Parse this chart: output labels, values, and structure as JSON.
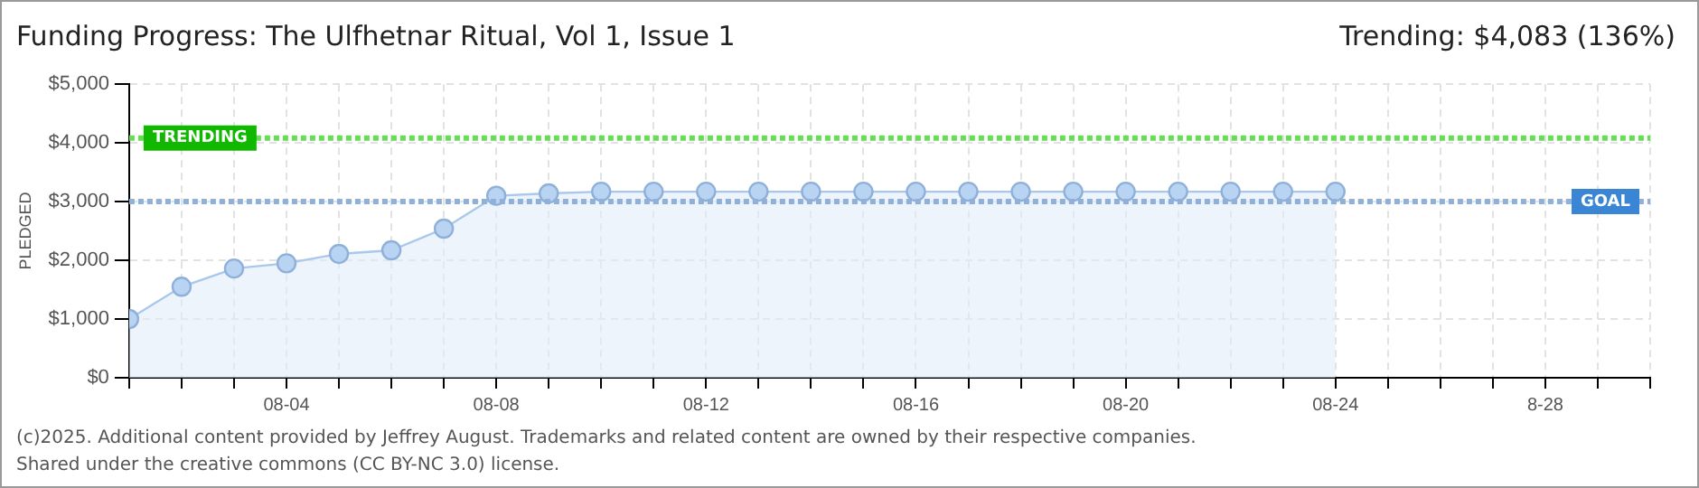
{
  "chart_data": {
    "type": "area",
    "title": "Funding Progress: The Ulfhetnar Ritual, Vol 1, Issue 1",
    "ylabel": "PLEDGED",
    "annotations": [
      "Trending: $4,083 (136%)",
      "(c)2025. Additional content provided by Jeffrey August. Trademarks and related content are owned by their respective companies.",
      "Shared under the creative commons (CC BY-NC 3.0) license."
    ],
    "x": [
      "--08-01",
      "--08-02",
      "--08-03",
      "--08-04",
      "--08-05",
      "--08-06",
      "--08-07",
      "--08-08",
      "--08-09",
      "--08-10",
      "--08-11",
      "--08-12",
      "--08-13",
      "--08-14",
      "--08-15",
      "--08-16",
      "--08-17",
      "--08-18",
      "--08-19",
      "--08-20",
      "--08-21",
      "--08-22",
      "--08-23",
      "--08-24"
    ],
    "series": [
      {
        "color": "#a9c8ec",
        "values": [
          1000,
          1550,
          1860,
          1950,
          2110,
          2170,
          2540,
          3100,
          3140,
          3170,
          3170,
          3170,
          3170,
          3170,
          3170,
          3170,
          3170,
          3170,
          3170,
          3170,
          3170,
          3170,
          3170,
          3170
        ]
      }
    ],
    "xlim": [
      "--08-01",
      "--08-30"
    ],
    "xticks": [
      {
        "value": "--08-01",
        "label": null
      },
      {
        "value": "--08-02",
        "label": null
      },
      {
        "value": "--08-03",
        "label": null
      },
      {
        "value": "--08-04",
        "label": "08-04"
      },
      {
        "value": "--08-05",
        "label": null
      },
      {
        "value": "--08-06",
        "label": null
      },
      {
        "value": "--08-07",
        "label": null
      },
      {
        "value": "--08-08",
        "label": "08-08"
      },
      {
        "value": "--08-09",
        "label": null
      },
      {
        "value": "--08-10",
        "label": null
      },
      {
        "value": "--08-11",
        "label": null
      },
      {
        "value": "--08-12",
        "label": "08-12"
      },
      {
        "value": "--08-13",
        "label": null
      },
      {
        "value": "--08-14",
        "label": null
      },
      {
        "value": "--08-15",
        "label": null
      },
      {
        "value": "--08-16",
        "label": "08-16"
      },
      {
        "value": "--08-17",
        "label": null
      },
      {
        "value": "--08-18",
        "label": null
      },
      {
        "value": "--08-19",
        "label": null
      },
      {
        "value": "--08-20",
        "label": "08-20"
      },
      {
        "value": "--08-21",
        "label": null
      },
      {
        "value": "--08-22",
        "label": null
      },
      {
        "value": "--08-23",
        "label": null
      },
      {
        "value": "--08-24",
        "label": "08-24"
      },
      {
        "value": "--08-25",
        "label": null
      },
      {
        "value": "--08-26",
        "label": null
      },
      {
        "value": "--08-27",
        "label": null
      },
      {
        "value": "--08-28",
        "label": "8-28"
      },
      {
        "value": "--08-29",
        "label": null
      },
      {
        "value": "--08-30",
        "label": null
      }
    ],
    "ylim": [
      0,
      5000
    ],
    "yticks": [
      {
        "value": 0,
        "label": "$0"
      },
      {
        "value": 1000,
        "label": "$1,000"
      },
      {
        "value": 2000,
        "label": "$2,000"
      },
      {
        "value": 3000,
        "label": "$3,000"
      },
      {
        "value": 4000,
        "label": "$4,000"
      },
      {
        "value": 5000,
        "label": "$5,000"
      }
    ],
    "ref_lines": [
      {
        "axis": "y",
        "value": 4083,
        "label": "TRENDING",
        "color": "#66dd55",
        "line_style": "dotted"
      },
      {
        "axis": "y",
        "value": 3000,
        "label": "GOAL",
        "color": "#8fb0d8",
        "line_style": "dotted"
      }
    ],
    "grid": true,
    "marker": "circle",
    "legend": false
  }
}
